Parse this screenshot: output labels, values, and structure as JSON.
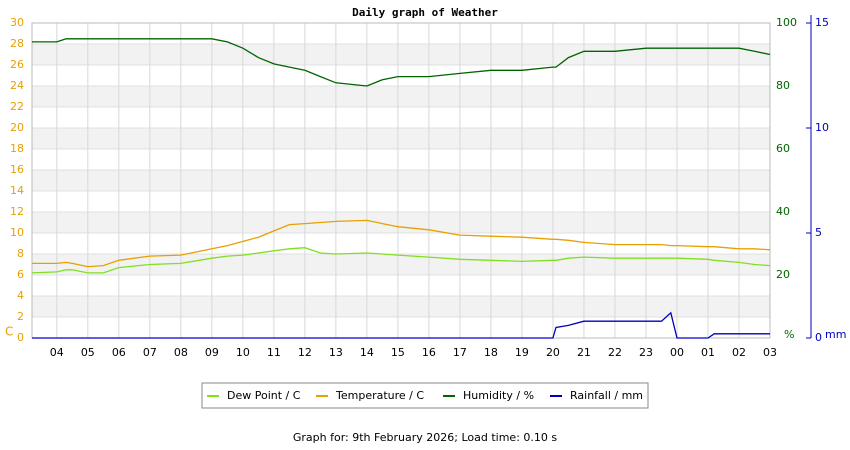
{
  "chart_data": {
    "type": "line",
    "title": "Daily graph of Weather",
    "y_label": "C",
    "y2_label": "%",
    "y3_label": "mm",
    "x": [
      3.2,
      4,
      4.3,
      4.5,
      5,
      5.5,
      6,
      7,
      8,
      9,
      9.5,
      10,
      10.5,
      11,
      11.5,
      12,
      12.5,
      13,
      14,
      14.5,
      15,
      16,
      17,
      18,
      19,
      20,
      20.1,
      20.5,
      21,
      22,
      23,
      23.5,
      23.8,
      24,
      25,
      25.2,
      26,
      26.5,
      27
    ],
    "xlim": [
      3.2,
      27
    ],
    "xticks": [
      {
        "value": 4,
        "label": "04"
      },
      {
        "value": 5,
        "label": "05"
      },
      {
        "value": 6,
        "label": "06"
      },
      {
        "value": 7,
        "label": "07"
      },
      {
        "value": 8,
        "label": "08"
      },
      {
        "value": 9,
        "label": "09"
      },
      10,
      11,
      12,
      13,
      14,
      15,
      16,
      17,
      18,
      19,
      20,
      21,
      22,
      23,
      {
        "value": 24,
        "label": "00"
      },
      {
        "value": 25,
        "label": "01"
      },
      {
        "value": 26,
        "label": "02"
      },
      {
        "value": 27,
        "label": "03"
      }
    ],
    "ylim": [
      0,
      30
    ],
    "yticks": [
      0,
      2,
      4,
      6,
      8,
      10,
      12,
      14,
      16,
      18,
      20,
      22,
      24,
      26,
      28,
      30
    ],
    "y2lim": [
      0,
      100
    ],
    "y2ticks": [
      20,
      40,
      60,
      80,
      100
    ],
    "y3lim": [
      0,
      15
    ],
    "y3ticks": [
      0,
      5,
      10,
      15
    ],
    "grid": true,
    "series": [
      {
        "name": "Dew Point / C",
        "color": "#80e020",
        "axis": "y",
        "values": [
          6.2,
          6.3,
          6.5,
          6.5,
          6.2,
          6.2,
          6.7,
          7.0,
          7.1,
          7.6,
          7.8,
          7.9,
          8.1,
          8.3,
          8.5,
          8.6,
          8.1,
          8.0,
          8.1,
          8.0,
          7.9,
          7.7,
          7.5,
          7.4,
          7.3,
          7.4,
          7.4,
          7.6,
          7.7,
          7.6,
          7.6,
          7.6,
          7.6,
          7.6,
          7.5,
          7.4,
          7.2,
          7.0,
          6.9
        ]
      },
      {
        "name": "Temperature / C",
        "color": "#e8a000",
        "axis": "y",
        "values": [
          7.1,
          7.1,
          7.2,
          7.1,
          6.8,
          6.9,
          7.4,
          7.8,
          7.9,
          8.5,
          8.8,
          9.2,
          9.6,
          10.2,
          10.8,
          10.9,
          11.0,
          11.1,
          11.2,
          10.9,
          10.6,
          10.3,
          9.8,
          9.7,
          9.6,
          9.4,
          9.4,
          9.3,
          9.1,
          8.9,
          8.9,
          8.9,
          8.8,
          8.8,
          8.7,
          8.7,
          8.5,
          8.5,
          8.4
        ]
      },
      {
        "name": "Humidity / %",
        "color": "#006400",
        "axis": "y2",
        "values": [
          94,
          94,
          95,
          95,
          95,
          95,
          95,
          95,
          95,
          95,
          94,
          92,
          89,
          87,
          86,
          85,
          83,
          81,
          80,
          82,
          83,
          83,
          84,
          85,
          85,
          86,
          86,
          89,
          91,
          91,
          92,
          92,
          92,
          92,
          92,
          92,
          92,
          91,
          90
        ]
      },
      {
        "name": "Rainfall / mm",
        "color": "#0000c0",
        "axis": "y3",
        "values": [
          0,
          0,
          0,
          0,
          0,
          0,
          0,
          0,
          0,
          0,
          0,
          0,
          0,
          0,
          0,
          0,
          0,
          0,
          0,
          0,
          0,
          0,
          0,
          0,
          0,
          0,
          0.5,
          0.6,
          0.8,
          0.8,
          0.8,
          0.8,
          1.2,
          0,
          0,
          0.2,
          0.2,
          0.2,
          0.2
        ]
      }
    ],
    "footer": "Graph for: 9th February 2026; Load time: 0.10 s"
  }
}
